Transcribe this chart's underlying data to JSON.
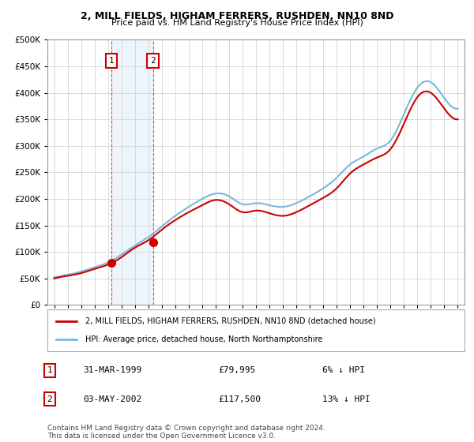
{
  "title": "2, MILL FIELDS, HIGHAM FERRERS, RUSHDEN, NN10 8ND",
  "subtitle": "Price paid vs. HM Land Registry's House Price Index (HPI)",
  "legend_line1": "2, MILL FIELDS, HIGHAM FERRERS, RUSHDEN, NN10 8ND (detached house)",
  "legend_line2": "HPI: Average price, detached house, North Northamptonshire",
  "annotation1_label": "1",
  "annotation1_date": "31-MAR-1999",
  "annotation1_price": "£79,995",
  "annotation1_hpi": "6% ↓ HPI",
  "annotation2_label": "2",
  "annotation2_date": "03-MAY-2002",
  "annotation2_price": "£117,500",
  "annotation2_hpi": "13% ↓ HPI",
  "footer": "Contains HM Land Registry data © Crown copyright and database right 2024.\nThis data is licensed under the Open Government Licence v3.0.",
  "ylim": [
    0,
    500000
  ],
  "yticks": [
    0,
    50000,
    100000,
    150000,
    200000,
    250000,
    300000,
    350000,
    400000,
    450000,
    500000
  ],
  "sale1_year": 1999.25,
  "sale1_price": 79995,
  "sale2_year": 2002.35,
  "sale2_price": 117500,
  "hpi_color": "#7ab8d9",
  "price_color": "#cc0000",
  "sale_marker_color": "#cc0000",
  "annotation_box_color": "#cc0000",
  "shading_color": "#c6dbef",
  "background_color": "#ffffff",
  "grid_color": "#cccccc",
  "hpi_years": [
    1995,
    1996,
    1997,
    1998,
    1999,
    2000,
    2001,
    2002,
    2003,
    2004,
    2005,
    2006,
    2007,
    2008,
    2009,
    2010,
    2011,
    2012,
    2013,
    2014,
    2015,
    2016,
    2017,
    2018,
    2019,
    2020,
    2021,
    2022,
    2023,
    2024,
    2025
  ],
  "hpi_values": [
    52000,
    57000,
    63000,
    71000,
    80000,
    95000,
    112000,
    128000,
    148000,
    168000,
    185000,
    200000,
    210000,
    205000,
    190000,
    192000,
    188000,
    185000,
    192000,
    205000,
    220000,
    240000,
    265000,
    280000,
    295000,
    310000,
    360000,
    410000,
    420000,
    390000,
    370000
  ],
  "red_years": [
    1995,
    1996,
    1997,
    1998,
    1999,
    2000,
    2001,
    2002,
    2003,
    2004,
    2005,
    2006,
    2007,
    2008,
    2009,
    2010,
    2011,
    2012,
    2013,
    2014,
    2015,
    2016,
    2017,
    2018,
    2019,
    2020,
    2021,
    2022,
    2023,
    2024,
    2025
  ],
  "red_values": [
    50000,
    55000,
    60000,
    68000,
    76000,
    90000,
    108000,
    122000,
    142000,
    160000,
    175000,
    188000,
    198000,
    190000,
    175000,
    178000,
    173000,
    168000,
    175000,
    188000,
    202000,
    220000,
    248000,
    265000,
    278000,
    294000,
    342000,
    392000,
    400000,
    370000,
    350000
  ]
}
